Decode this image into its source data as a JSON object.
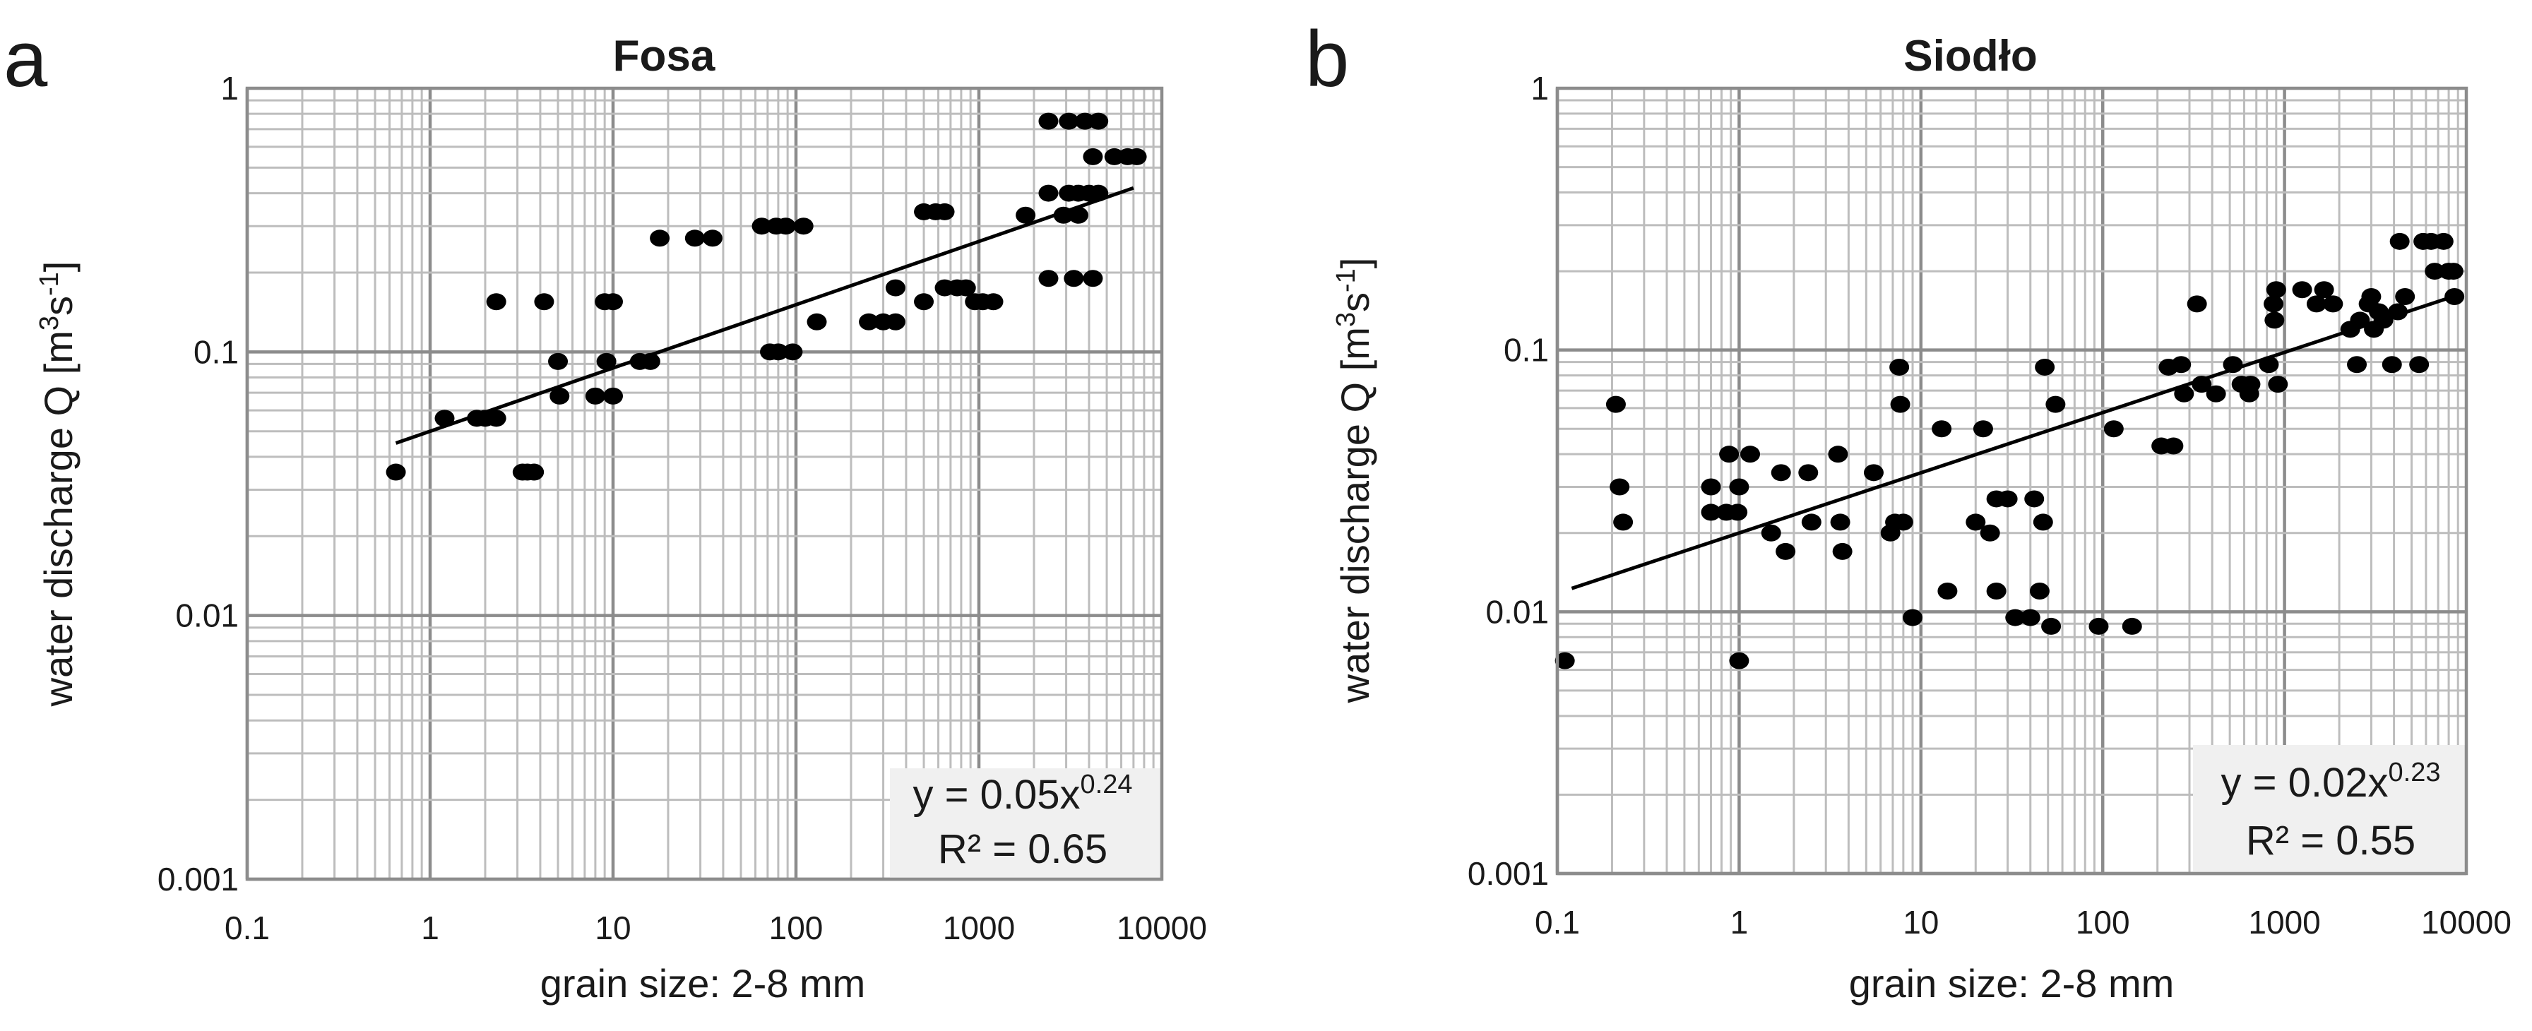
{
  "chart_data": [
    {
      "type": "scatter",
      "panel_label": "a",
      "title": "Fosa",
      "xlabel": "grain size: 2-8 mm",
      "ylabel_main": "water discharge Q [m",
      "ylabel_sup1": "3",
      "ylabel_mid": "s",
      "ylabel_sup2": "-1",
      "ylabel_end": "]",
      "xscale": "log",
      "yscale": "log",
      "xlim": [
        0.1,
        10000
      ],
      "ylim": [
        0.001,
        1
      ],
      "xticks": [
        "0.1",
        "1",
        "10",
        "100",
        "1000",
        "10000"
      ],
      "yticks": [
        "1",
        "0.1",
        "0.01",
        "0.001"
      ],
      "grid": true,
      "trendline": {
        "type": "power",
        "a": 0.05,
        "b": 0.24,
        "x_range": [
          0.65,
          7000
        ]
      },
      "equation": {
        "prefix": "y = 0.05x",
        "exponent": "0.24",
        "r2": "R² = 0.65"
      },
      "equation_position": "bottom-right",
      "points": [
        [
          0.65,
          0.035
        ],
        [
          1.2,
          0.056
        ],
        [
          1.8,
          0.056
        ],
        [
          2.0,
          0.056
        ],
        [
          2.3,
          0.056
        ],
        [
          2.3,
          0.155
        ],
        [
          3.2,
          0.035
        ],
        [
          3.4,
          0.035
        ],
        [
          3.7,
          0.035
        ],
        [
          4.2,
          0.155
        ],
        [
          5,
          0.092
        ],
        [
          5.1,
          0.068
        ],
        [
          8,
          0.068
        ],
        [
          9,
          0.155
        ],
        [
          9.2,
          0.092
        ],
        [
          10,
          0.155
        ],
        [
          10,
          0.068
        ],
        [
          14,
          0.092
        ],
        [
          16,
          0.092
        ],
        [
          18,
          0.27
        ],
        [
          28,
          0.27
        ],
        [
          35,
          0.27
        ],
        [
          65,
          0.3
        ],
        [
          72,
          0.1
        ],
        [
          78,
          0.3
        ],
        [
          80,
          0.1
        ],
        [
          88,
          0.3
        ],
        [
          96,
          0.1
        ],
        [
          110,
          0.3
        ],
        [
          130,
          0.13
        ],
        [
          250,
          0.13
        ],
        [
          300,
          0.13
        ],
        [
          350,
          0.13
        ],
        [
          350,
          0.175
        ],
        [
          500,
          0.155
        ],
        [
          500,
          0.34
        ],
        [
          580,
          0.34
        ],
        [
          650,
          0.34
        ],
        [
          650,
          0.175
        ],
        [
          760,
          0.175
        ],
        [
          850,
          0.175
        ],
        [
          950,
          0.155
        ],
        [
          1050,
          0.155
        ],
        [
          1200,
          0.155
        ],
        [
          1800,
          0.33
        ],
        [
          2400,
          0.75
        ],
        [
          2400,
          0.4
        ],
        [
          2400,
          0.19
        ],
        [
          2900,
          0.33
        ],
        [
          3100,
          0.4
        ],
        [
          3100,
          0.75
        ],
        [
          3300,
          0.19
        ],
        [
          3500,
          0.33
        ],
        [
          3500,
          0.4
        ],
        [
          3800,
          0.75
        ],
        [
          4000,
          0.4
        ],
        [
          4200,
          0.19
        ],
        [
          4200,
          0.55
        ],
        [
          4500,
          0.75
        ],
        [
          4500,
          0.4
        ],
        [
          5500,
          0.55
        ],
        [
          6500,
          0.55
        ],
        [
          7300,
          0.55
        ]
      ]
    },
    {
      "type": "scatter",
      "panel_label": "b",
      "title": "Siodło",
      "xlabel": "grain size: 2-8 mm",
      "ylabel_main": "water discharge Q [m",
      "ylabel_sup1": "3",
      "ylabel_mid": "s",
      "ylabel_sup2": "-1",
      "ylabel_end": "]",
      "xscale": "log",
      "yscale": "log",
      "xlim": [
        0.1,
        10000
      ],
      "ylim": [
        0.001,
        1
      ],
      "xticks": [
        "0.1",
        "1",
        "10",
        "100",
        "1000",
        "10000"
      ],
      "yticks": [
        "1",
        "0.1",
        "0.01",
        "0.001"
      ],
      "grid": true,
      "trendline": {
        "type": "power",
        "a": 0.02,
        "b": 0.23,
        "x_range": [
          0.12,
          8500
        ]
      },
      "equation": {
        "prefix": "y = 0.02x",
        "exponent": "0.23",
        "r2": "R² = 0.55"
      },
      "equation_position": "bottom-right",
      "points": [
        [
          0.11,
          0.0065
        ],
        [
          0.21,
          0.062
        ],
        [
          0.22,
          0.03
        ],
        [
          0.23,
          0.022
        ],
        [
          0.7,
          0.03
        ],
        [
          0.7,
          0.024
        ],
        [
          0.85,
          0.024
        ],
        [
          0.88,
          0.04
        ],
        [
          0.98,
          0.024
        ],
        [
          1.0,
          0.03
        ],
        [
          1.0,
          0.0065
        ],
        [
          1.15,
          0.04
        ],
        [
          1.5,
          0.02
        ],
        [
          1.7,
          0.034
        ],
        [
          1.8,
          0.017
        ],
        [
          2.4,
          0.034
        ],
        [
          2.5,
          0.022
        ],
        [
          3.5,
          0.04
        ],
        [
          3.6,
          0.022
        ],
        [
          3.7,
          0.017
        ],
        [
          5.5,
          0.034
        ],
        [
          6.8,
          0.02
        ],
        [
          7.2,
          0.022
        ],
        [
          7.6,
          0.086
        ],
        [
          7.7,
          0.062
        ],
        [
          8.0,
          0.022
        ],
        [
          9.0,
          0.0095
        ],
        [
          13,
          0.05
        ],
        [
          14,
          0.012
        ],
        [
          20,
          0.022
        ],
        [
          22,
          0.05
        ],
        [
          24,
          0.02
        ],
        [
          26,
          0.027
        ],
        [
          26,
          0.012
        ],
        [
          30,
          0.027
        ],
        [
          33,
          0.0095
        ],
        [
          40,
          0.0095
        ],
        [
          42,
          0.027
        ],
        [
          45,
          0.012
        ],
        [
          47,
          0.022
        ],
        [
          48,
          0.086
        ],
        [
          52,
          0.0088
        ],
        [
          55,
          0.062
        ],
        [
          95,
          0.0088
        ],
        [
          115,
          0.05
        ],
        [
          145,
          0.0088
        ],
        [
          210,
          0.043
        ],
        [
          230,
          0.086
        ],
        [
          245,
          0.043
        ],
        [
          270,
          0.088
        ],
        [
          280,
          0.068
        ],
        [
          330,
          0.15
        ],
        [
          350,
          0.074
        ],
        [
          420,
          0.068
        ],
        [
          520,
          0.088
        ],
        [
          580,
          0.074
        ],
        [
          640,
          0.068
        ],
        [
          650,
          0.074
        ],
        [
          820,
          0.088
        ],
        [
          870,
          0.15
        ],
        [
          880,
          0.13
        ],
        [
          900,
          0.17
        ],
        [
          920,
          0.074
        ],
        [
          1250,
          0.17
        ],
        [
          1500,
          0.15
        ],
        [
          1650,
          0.17
        ],
        [
          1850,
          0.15
        ],
        [
          2300,
          0.12
        ],
        [
          2500,
          0.088
        ],
        [
          2600,
          0.13
        ],
        [
          2900,
          0.15
        ],
        [
          3000,
          0.16
        ],
        [
          3100,
          0.12
        ],
        [
          3300,
          0.14
        ],
        [
          3500,
          0.13
        ],
        [
          3900,
          0.088
        ],
        [
          4200,
          0.14
        ],
        [
          4300,
          0.26
        ],
        [
          4600,
          0.16
        ],
        [
          5500,
          0.088
        ],
        [
          5800,
          0.26
        ],
        [
          6400,
          0.26
        ],
        [
          6700,
          0.2
        ],
        [
          7500,
          0.26
        ],
        [
          8000,
          0.2
        ],
        [
          8500,
          0.2
        ],
        [
          8600,
          0.16
        ]
      ]
    }
  ]
}
